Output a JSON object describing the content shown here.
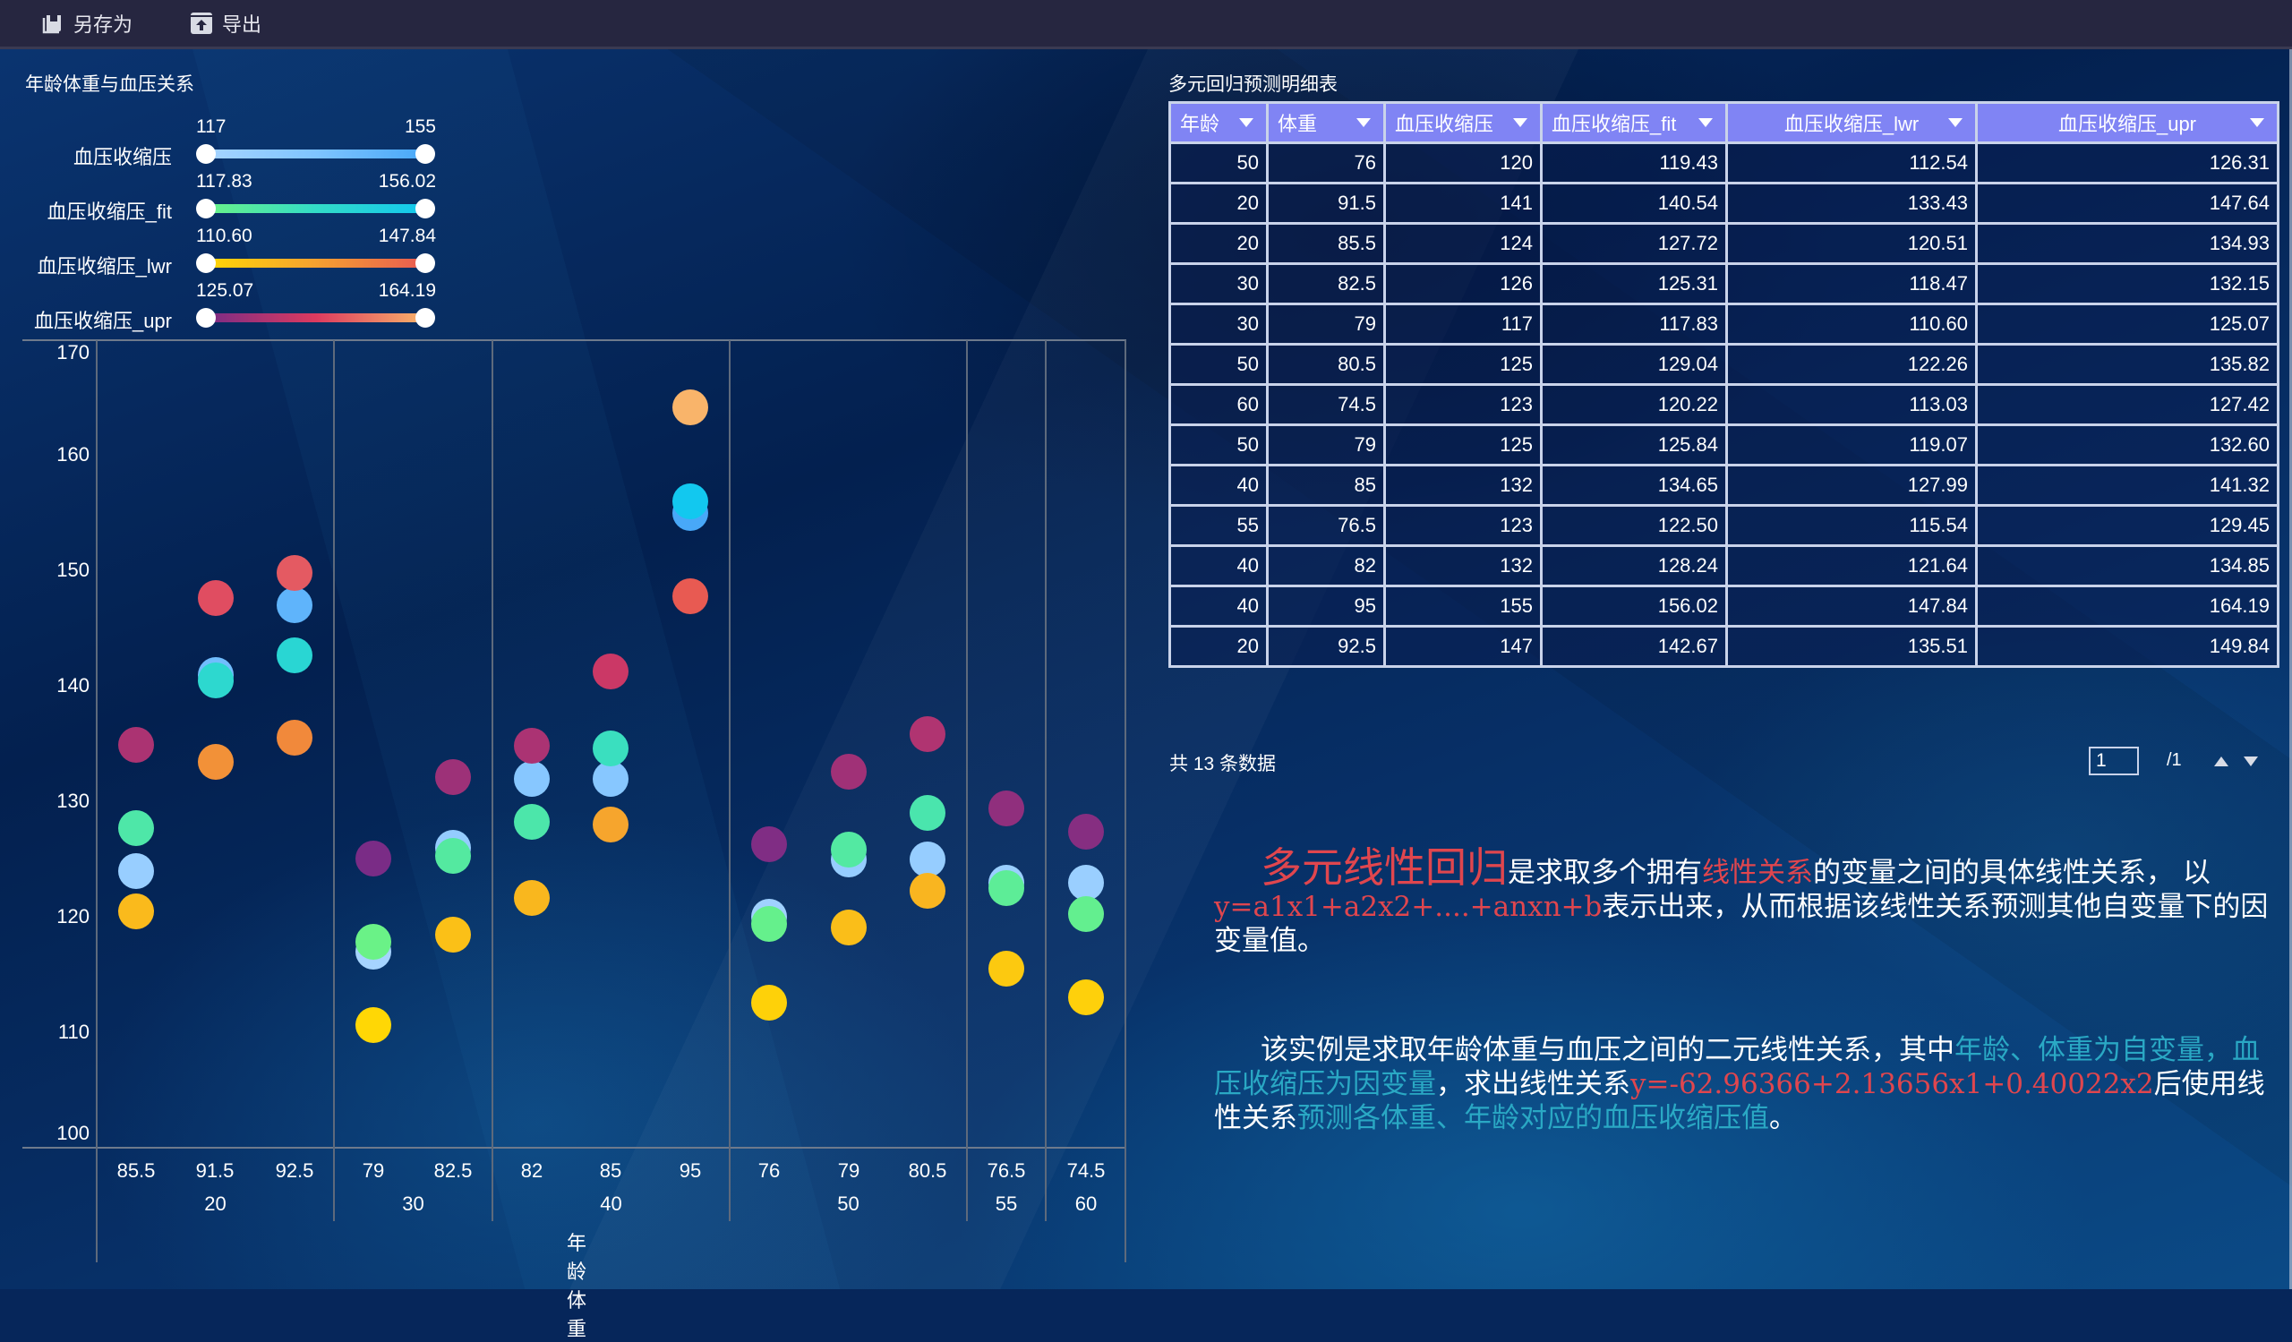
{
  "toolbar": {
    "save_as_label": "另存为",
    "export_label": "导出"
  },
  "left_panel": {
    "title": "年龄体重与血压关系",
    "visual_map": [
      {
        "label": "血压收缩压",
        "min": "117",
        "max": "155",
        "colors": [
          "#a6d4ff",
          "#7fc4ff",
          "#48a8f8"
        ]
      },
      {
        "label": "血压收缩压_fit",
        "min": "117.83",
        "max": "156.02",
        "colors": [
          "#6af287",
          "#33dcc7",
          "#12c8ef"
        ]
      },
      {
        "label": "血压收缩压_lwr",
        "min": "110.60",
        "max": "147.84",
        "colors": [
          "#ffd705",
          "#f5a130",
          "#e85a52"
        ]
      },
      {
        "label": "血压收缩压_upr",
        "min": "125.07",
        "max": "164.19",
        "colors": [
          "#7a2c86",
          "#dc3a5f",
          "#f9b46a"
        ]
      }
    ]
  },
  "chart_data": {
    "type": "scatter",
    "title": "年龄体重与血压关系",
    "xlabel": "年龄 体重",
    "ylabel": "",
    "ylim": [
      100,
      170
    ],
    "yticks": [
      "170",
      "160",
      "150",
      "140",
      "130",
      "120",
      "110",
      "100"
    ],
    "grid": true,
    "legend_position": "top-left (visualMap ranges)",
    "categories": [
      "85.5",
      "91.5",
      "92.5",
      "79",
      "82.5",
      "82",
      "85",
      "95",
      "76",
      "79",
      "80.5",
      "76.5",
      "74.5"
    ],
    "groups": [
      {
        "label": "20",
        "span": 3
      },
      {
        "label": "30",
        "span": 2
      },
      {
        "label": "40",
        "span": 3
      },
      {
        "label": "50",
        "span": 3
      },
      {
        "label": "55",
        "span": 1
      },
      {
        "label": "60",
        "span": 1
      }
    ],
    "series": [
      {
        "name": "血压收缩压",
        "values": [
          124,
          141,
          147,
          117,
          126,
          132,
          132,
          155,
          120,
          125,
          125,
          123,
          123
        ]
      },
      {
        "name": "血压收缩压_fit",
        "values": [
          127.72,
          140.54,
          142.67,
          117.83,
          125.31,
          128.24,
          134.65,
          156.02,
          119.43,
          125.84,
          129.04,
          122.5,
          120.22
        ]
      },
      {
        "name": "血压收缩压_lwr",
        "values": [
          120.51,
          133.43,
          135.51,
          110.6,
          118.47,
          121.64,
          127.99,
          147.84,
          112.54,
          119.07,
          122.26,
          115.54,
          113.03
        ]
      },
      {
        "name": "血压收缩压_upr",
        "values": [
          134.93,
          147.64,
          149.84,
          125.07,
          132.15,
          134.85,
          141.32,
          164.19,
          126.31,
          132.6,
          135.82,
          129.45,
          127.42
        ]
      }
    ]
  },
  "table": {
    "title": "多元回归预测明细表",
    "columns": [
      "年龄",
      "体重",
      "血压收缩压",
      "血压收缩压_fit",
      "血压收缩压_lwr",
      "血压收缩压_upr"
    ],
    "rows": [
      [
        "50",
        "76",
        "120",
        "119.43",
        "112.54",
        "126.31"
      ],
      [
        "20",
        "91.5",
        "141",
        "140.54",
        "133.43",
        "147.64"
      ],
      [
        "20",
        "85.5",
        "124",
        "127.72",
        "120.51",
        "134.93"
      ],
      [
        "30",
        "82.5",
        "126",
        "125.31",
        "118.47",
        "132.15"
      ],
      [
        "30",
        "79",
        "117",
        "117.83",
        "110.60",
        "125.07"
      ],
      [
        "50",
        "80.5",
        "125",
        "129.04",
        "122.26",
        "135.82"
      ],
      [
        "60",
        "74.5",
        "123",
        "120.22",
        "113.03",
        "127.42"
      ],
      [
        "50",
        "79",
        "125",
        "125.84",
        "119.07",
        "132.60"
      ],
      [
        "40",
        "85",
        "132",
        "134.65",
        "127.99",
        "141.32"
      ],
      [
        "55",
        "76.5",
        "123",
        "122.50",
        "115.54",
        "129.45"
      ],
      [
        "40",
        "82",
        "132",
        "128.24",
        "121.64",
        "134.85"
      ],
      [
        "40",
        "95",
        "155",
        "156.02",
        "147.84",
        "164.19"
      ],
      [
        "20",
        "92.5",
        "147",
        "142.67",
        "135.51",
        "149.84"
      ]
    ],
    "pager": {
      "info": "共 13 条数据",
      "current_page": "1",
      "total_pages": "/1"
    }
  },
  "description": {
    "p1": {
      "term": "多元线性回归",
      "t1": "是求取多个拥有",
      "hl1": "线性关系",
      "t2": "的变量之间的具体线性关系， 以",
      "formula": "y=a1x1+a2x2+....+anxn+b",
      "t3": "表示出来，从而根据该线性关系预测其他自变量下的因变量值。"
    },
    "p2": {
      "t1": "该实例是求取年龄体重与血压之间的二元线性关系，其中",
      "hl1": "年龄、体重为自变量，血压收缩压为因变量",
      "t2": "，求出线性关系",
      "formula": "y=-62.96366+2.13656x1+0.40022x2",
      "t3": "后使用线性关系",
      "hl2": "预测各体重、年龄对应的血压收缩压值",
      "t4": "。"
    }
  }
}
